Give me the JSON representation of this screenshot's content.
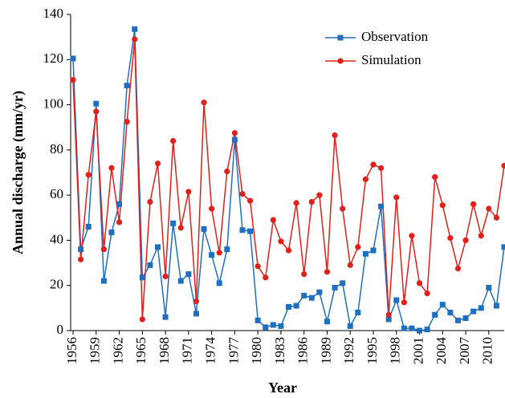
{
  "chart_data": {
    "type": "line",
    "x_label": "Year",
    "y_label": "Annual discharge (mm/yr)",
    "x": [
      1956,
      1957,
      1958,
      1959,
      1960,
      1961,
      1962,
      1963,
      1964,
      1965,
      1966,
      1967,
      1968,
      1969,
      1970,
      1971,
      1972,
      1973,
      1974,
      1975,
      1976,
      1977,
      1978,
      1979,
      1980,
      1981,
      1982,
      1983,
      1984,
      1985,
      1986,
      1987,
      1988,
      1989,
      1990,
      1991,
      1992,
      1993,
      1994,
      1995,
      1996,
      1997,
      1998,
      1999,
      2000,
      2001,
      2002,
      2003,
      2004,
      2005,
      2006,
      2007,
      2008,
      2009,
      2010,
      2011,
      2012
    ],
    "series": [
      {
        "name": "Observation",
        "color": "#1f6fc0",
        "marker": "square",
        "values": [
          120.5,
          36,
          46,
          100.5,
          22,
          43.5,
          56,
          108.5,
          133.5,
          23.5,
          29,
          37,
          6,
          47.5,
          22,
          25,
          7.5,
          45,
          33.5,
          21,
          36,
          84.5,
          44.5,
          44,
          4.5,
          1.5,
          2.5,
          2,
          10.5,
          11,
          15.5,
          14.5,
          17,
          4,
          19,
          21,
          2,
          8,
          34,
          35.5,
          55,
          5,
          13.5,
          1,
          1,
          0,
          0.5,
          7,
          11.5,
          8,
          4.5,
          5.5,
          8.5,
          10,
          19,
          11,
          37
        ]
      },
      {
        "name": "Simulation",
        "color": "#e0201b",
        "marker": "circle",
        "values": [
          111,
          31.5,
          69,
          97,
          36,
          72,
          48,
          92.5,
          129,
          5,
          57,
          74,
          24,
          84,
          45.5,
          61.5,
          13,
          101,
          54,
          34.5,
          70.5,
          87.5,
          60.5,
          57.5,
          28.5,
          23.5,
          49,
          39.5,
          35.5,
          56.5,
          25,
          57,
          60,
          26,
          86.5,
          54,
          29,
          37,
          67,
          73.5,
          72,
          7,
          59,
          12.5,
          42,
          21,
          16.5,
          68,
          55.5,
          41,
          27.5,
          40,
          56,
          42,
          54,
          50,
          73
        ]
      }
    ],
    "xlim": [
      1956,
      2012
    ],
    "xticks": [
      1956,
      1959,
      1962,
      1965,
      1968,
      1971,
      1974,
      1977,
      1980,
      1983,
      1986,
      1989,
      1992,
      1995,
      1998,
      2001,
      2004,
      2007,
      2010
    ],
    "ylim": [
      0,
      140
    ],
    "yticks": [
      0,
      20,
      40,
      60,
      80,
      100,
      120,
      140
    ],
    "legend": "upper-right"
  }
}
